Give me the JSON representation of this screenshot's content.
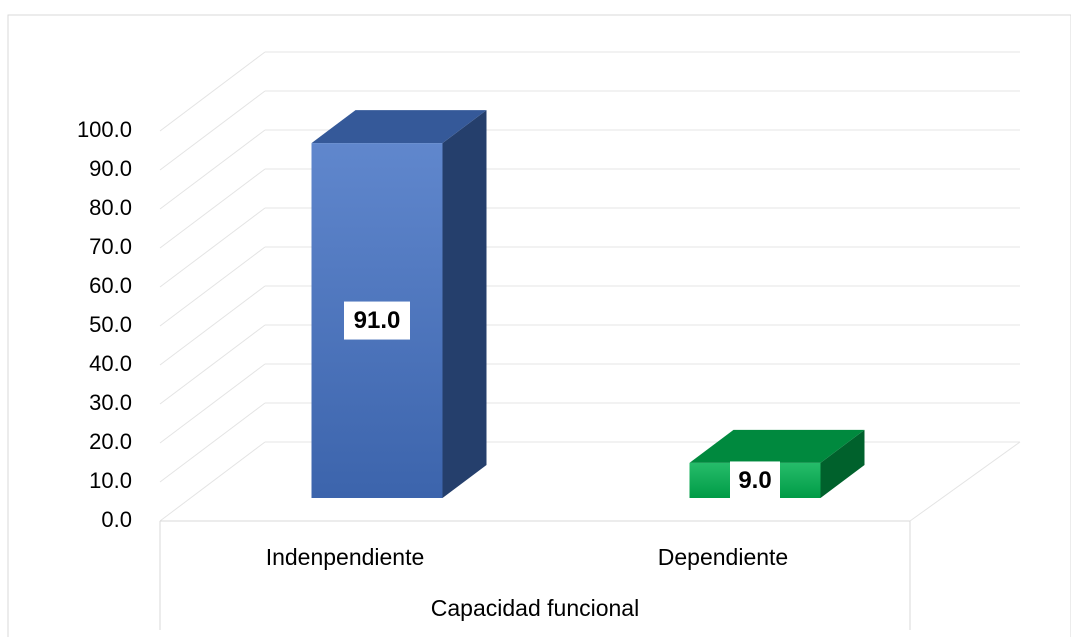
{
  "chart_data": {
    "type": "bar3d",
    "x_label": "Capacidad funcional",
    "categories": [
      "Indenpendiente",
      "Dependiente"
    ],
    "values": [
      91.0,
      9.0
    ],
    "value_labels": [
      "91.0",
      "9.0"
    ],
    "colors": [
      "#4472c4",
      "#00b050"
    ],
    "ylim": [
      0,
      100
    ],
    "yticks": [
      {
        "value": 0,
        "label": "0.0"
      },
      {
        "value": 10,
        "label": "10.0"
      },
      {
        "value": 20,
        "label": "20.0"
      },
      {
        "value": 30,
        "label": "30.0"
      },
      {
        "value": 40,
        "label": "40.0"
      },
      {
        "value": 50,
        "label": "50.0"
      },
      {
        "value": 60,
        "label": "60.0"
      },
      {
        "value": 70,
        "label": "70.0"
      },
      {
        "value": 80,
        "label": "80.0"
      },
      {
        "value": 90,
        "label": "90.0"
      },
      {
        "value": 100,
        "label": "100.0"
      }
    ],
    "grid": true
  }
}
